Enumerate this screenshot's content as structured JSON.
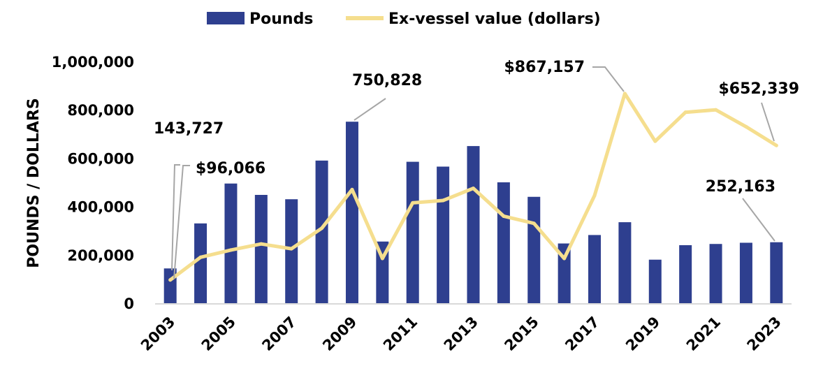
{
  "chart_data": {
    "type": "bar+line",
    "title": "",
    "xlabel": "",
    "ylabel": "POUNDS / DOLLARS",
    "ylim": [
      0,
      1000000
    ],
    "yticks": [
      0,
      200000,
      400000,
      600000,
      800000,
      1000000
    ],
    "ytick_labels": [
      "0",
      "200,000",
      "400,000",
      "600,000",
      "800,000",
      "1,000,000"
    ],
    "x": [
      2003,
      2004,
      2005,
      2006,
      2007,
      2008,
      2009,
      2010,
      2011,
      2012,
      2013,
      2014,
      2015,
      2016,
      2017,
      2018,
      2019,
      2020,
      2021,
      2022,
      2023
    ],
    "xtick_labels": [
      "2003",
      "2005",
      "2007",
      "2009",
      "2011",
      "2013",
      "2015",
      "2017",
      "2019",
      "2021",
      "2023"
    ],
    "xtick_years": [
      2003,
      2005,
      2007,
      2009,
      2011,
      2013,
      2015,
      2017,
      2019,
      2021,
      2023
    ],
    "series": [
      {
        "name": "Pounds",
        "kind": "bar",
        "color": "#2E3F8F",
        "values": [
          143727,
          330000,
          495000,
          448000,
          430000,
          590000,
          750828,
          255000,
          585000,
          565000,
          650000,
          500000,
          440000,
          247000,
          282000,
          335000,
          180000,
          240000,
          245000,
          250000,
          252163
        ]
      },
      {
        "name": "Ex-vessel value (dollars)",
        "kind": "line",
        "color": "#F5DE8E",
        "values": [
          96066,
          190000,
          220000,
          245000,
          225000,
          310000,
          470000,
          185000,
          415000,
          425000,
          475000,
          360000,
          330000,
          185000,
          445000,
          867157,
          670000,
          790000,
          800000,
          730000,
          652339
        ]
      }
    ],
    "legend": {
      "position": "top-center",
      "entries": [
        "Pounds",
        "Ex-vessel value (dollars)"
      ]
    },
    "annotations": [
      {
        "text": "143,727",
        "series": "Pounds",
        "year": 2003
      },
      {
        "text": "$96,066",
        "series": "Ex-vessel value (dollars)",
        "year": 2003
      },
      {
        "text": "750,828",
        "series": "Pounds",
        "year": 2009
      },
      {
        "text": "$867,157",
        "series": "Ex-vessel value (dollars)",
        "year": 2018
      },
      {
        "text": "$652,339",
        "series": "Ex-vessel value (dollars)",
        "year": 2023
      },
      {
        "text": "252,163",
        "series": "Pounds",
        "year": 2023
      }
    ]
  }
}
